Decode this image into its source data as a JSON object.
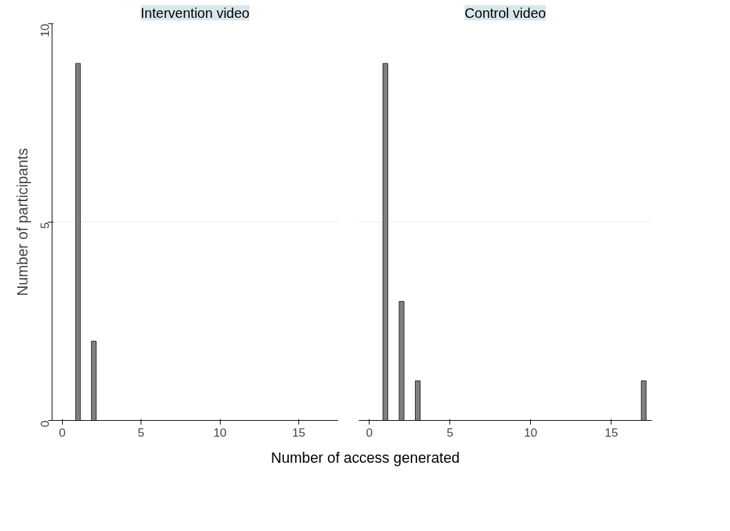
{
  "chart_data": [
    {
      "type": "bar",
      "title": "Intervention video",
      "ylabel": "Number of participants",
      "xlabel": "Number of access generated",
      "x": [
        1,
        2
      ],
      "values": [
        9,
        2
      ],
      "color": "#808080",
      "xlim": [
        -0.65,
        17.5
      ],
      "xticks": [
        0,
        5,
        10,
        15
      ],
      "ylim": [
        0,
        10
      ],
      "yticks": [
        0,
        5,
        10
      ],
      "grid": "y"
    },
    {
      "type": "bar",
      "title": "Control video",
      "x": [
        1,
        2,
        3,
        17
      ],
      "values": [
        9,
        3,
        1,
        1
      ],
      "color": "#808080",
      "xlim": [
        -0.65,
        17.5
      ],
      "xticks": [
        0,
        5,
        10,
        15
      ],
      "ylim": [
        0,
        10
      ],
      "yticks": [
        0,
        5,
        10
      ],
      "grid": "y",
      "tick_labels": "x"
    }
  ]
}
